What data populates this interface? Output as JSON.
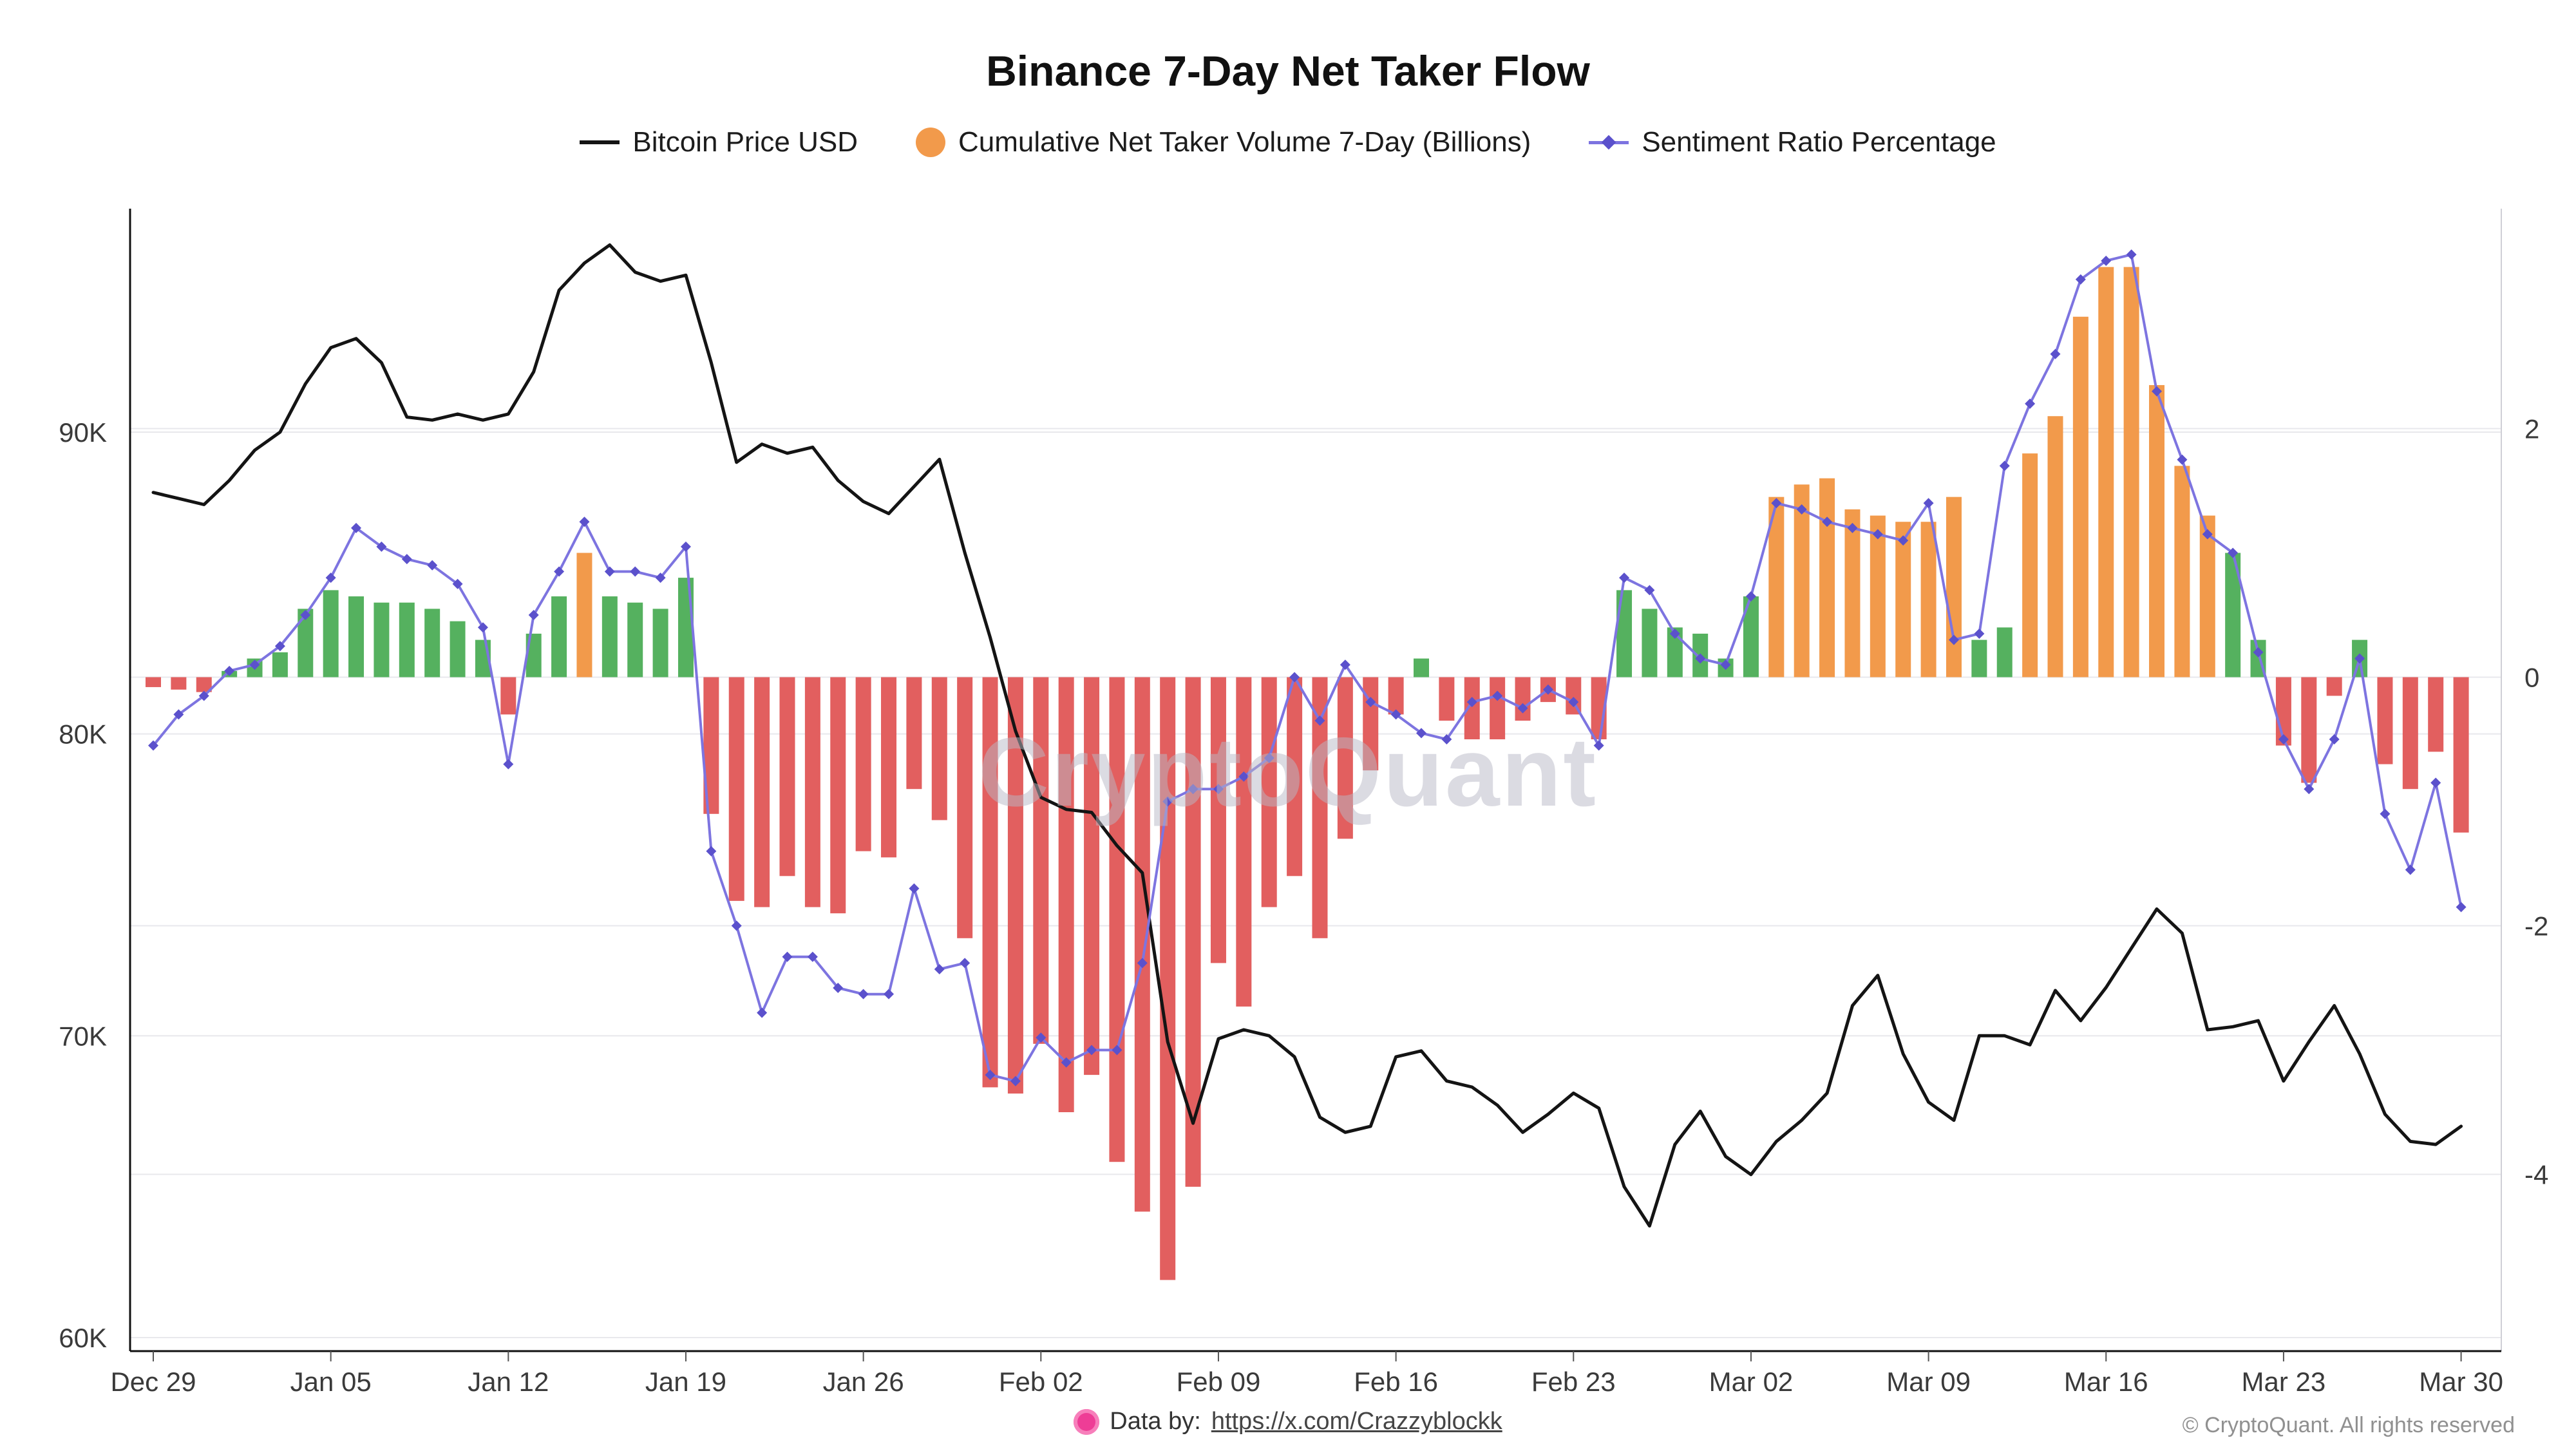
{
  "title": "Binance 7-Day Net Taker Flow",
  "watermark": "CryptoQuant",
  "legend": [
    {
      "label": "Bitcoin Price USD",
      "color": "#141414"
    },
    {
      "label": "Cumulative Net Taker Volume 7-Day (Billions)",
      "color": "#f29a4b"
    },
    {
      "label": "Sentiment Ratio Percentage",
      "color": "#7d74e0"
    }
  ],
  "footer": {
    "data_by_prefix": "Data by:",
    "data_by_link": "https://x.com/Crazzyblockk",
    "copyright": "© CryptoQuant. All rights reserved"
  },
  "chart_data": {
    "type": "mixed",
    "title": "Binance 7-Day Net Taker Flow",
    "x": [
      "Dec 29",
      "Dec 30",
      "Dec 31",
      "Jan 01",
      "Jan 02",
      "Jan 03",
      "Jan 04",
      "Jan 05",
      "Jan 06",
      "Jan 07",
      "Jan 08",
      "Jan 09",
      "Jan 10",
      "Jan 11",
      "Jan 12",
      "Jan 13",
      "Jan 14",
      "Jan 15",
      "Jan 16",
      "Jan 17",
      "Jan 18",
      "Jan 19",
      "Jan 20",
      "Jan 21",
      "Jan 22",
      "Jan 23",
      "Jan 24",
      "Jan 25",
      "Jan 26",
      "Jan 27",
      "Jan 28",
      "Jan 29",
      "Jan 30",
      "Jan 31",
      "Feb 01",
      "Feb 02",
      "Feb 03",
      "Feb 04",
      "Feb 05",
      "Feb 06",
      "Feb 07",
      "Feb 08",
      "Feb 09",
      "Feb 10",
      "Feb 11",
      "Feb 12",
      "Feb 13",
      "Feb 14",
      "Feb 15",
      "Feb 16",
      "Feb 17",
      "Feb 18",
      "Feb 19",
      "Feb 20",
      "Feb 21",
      "Feb 22",
      "Feb 23",
      "Feb 24",
      "Feb 25",
      "Feb 26",
      "Feb 27",
      "Feb 28",
      "Mar 01",
      "Mar 02",
      "Mar 03",
      "Mar 04",
      "Mar 05",
      "Mar 06",
      "Mar 07",
      "Mar 08",
      "Mar 09",
      "Mar 10",
      "Mar 11",
      "Mar 12",
      "Mar 13",
      "Mar 14",
      "Mar 15",
      "Mar 16",
      "Mar 17",
      "Mar 18",
      "Mar 19",
      "Mar 20",
      "Mar 21",
      "Mar 22",
      "Mar 23",
      "Mar 24",
      "Mar 25",
      "Mar 26",
      "Mar 27",
      "Mar 28",
      "Mar 29",
      "Mar 30"
    ],
    "series": [
      {
        "name": "Bitcoin Price USD",
        "type": "line",
        "axis": "left",
        "color": "#141414",
        "values": [
          88000,
          87800,
          87600,
          88400,
          89400,
          90000,
          91600,
          92800,
          93100,
          92300,
          90500,
          90400,
          90600,
          90400,
          90600,
          92000,
          94700,
          95600,
          96200,
          95300,
          95000,
          95200,
          92300,
          89000,
          89600,
          89300,
          89500,
          88400,
          87700,
          87300,
          88200,
          89100,
          86000,
          83200,
          80100,
          77900,
          77500,
          77400,
          76300,
          75400,
          69800,
          67100,
          69900,
          70200,
          70000,
          69300,
          67300,
          66800,
          67000,
          69300,
          69500,
          68500,
          68300,
          67700,
          66800,
          67400,
          68100,
          67600,
          65000,
          63700,
          66400,
          67500,
          66000,
          65400,
          66500,
          67200,
          68100,
          71000,
          72000,
          69400,
          67800,
          67200,
          70000,
          70000,
          69700,
          71500,
          70500,
          71600,
          72900,
          74200,
          73400,
          70200,
          70300,
          70500,
          68500,
          69800,
          71000,
          69400,
          67400,
          66500,
          66400,
          67000
        ]
      },
      {
        "name": "Cumulative Net Taker Volume 7-Day (Billions)",
        "type": "bar",
        "axis": "right",
        "values": [
          -0.08,
          -0.1,
          -0.12,
          0.05,
          0.15,
          0.2,
          0.55,
          0.7,
          0.65,
          0.6,
          0.6,
          0.55,
          0.45,
          0.3,
          -0.3,
          0.35,
          0.65,
          1.0,
          0.65,
          0.6,
          0.55,
          0.8,
          -1.1,
          -1.8,
          -1.85,
          -1.6,
          -1.85,
          -1.9,
          -1.4,
          -1.45,
          -0.9,
          -1.15,
          -2.1,
          -3.3,
          -3.35,
          -2.95,
          -3.5,
          -3.2,
          -3.9,
          -4.3,
          -4.85,
          -4.1,
          -2.3,
          -2.65,
          -1.85,
          -1.6,
          -2.1,
          -1.3,
          -0.75,
          -0.3,
          0.15,
          -0.35,
          -0.5,
          -0.5,
          -0.35,
          -0.2,
          -0.3,
          -0.5,
          0.7,
          0.55,
          0.4,
          0.35,
          0.15,
          0.65,
          1.45,
          1.55,
          1.6,
          1.35,
          1.3,
          1.25,
          1.25,
          1.45,
          0.3,
          0.4,
          1.8,
          2.1,
          2.9,
          3.3,
          3.3,
          2.35,
          1.7,
          1.3,
          1.0,
          0.3,
          -0.55,
          -0.85,
          -0.15,
          0.3,
          -0.7,
          -0.9,
          -0.6,
          -1.25
        ],
        "bar_colors": [
          "red",
          "red",
          "red",
          "green",
          "green",
          "green",
          "green",
          "green",
          "green",
          "green",
          "green",
          "green",
          "green",
          "green",
          "red",
          "green",
          "green",
          "orange",
          "green",
          "green",
          "green",
          "green",
          "red",
          "red",
          "red",
          "red",
          "red",
          "red",
          "red",
          "red",
          "red",
          "red",
          "red",
          "red",
          "red",
          "red",
          "red",
          "red",
          "red",
          "red",
          "red",
          "red",
          "red",
          "red",
          "red",
          "red",
          "red",
          "red",
          "red",
          "red",
          "green",
          "red",
          "red",
          "red",
          "red",
          "red",
          "red",
          "red",
          "green",
          "green",
          "green",
          "green",
          "green",
          "green",
          "orange",
          "orange",
          "orange",
          "orange",
          "orange",
          "orange",
          "orange",
          "orange",
          "green",
          "green",
          "orange",
          "orange",
          "orange",
          "orange",
          "orange",
          "orange",
          "orange",
          "orange",
          "green",
          "green",
          "red",
          "red",
          "red",
          "green",
          "red",
          "red",
          "red",
          "red"
        ],
        "palette": {
          "red": "#e25f5f",
          "green": "#55b15f",
          "orange": "#f29a4b"
        }
      },
      {
        "name": "Sentiment Ratio Percentage",
        "type": "line",
        "axis": "right",
        "color": "#7d74e0",
        "marker_color": "#5b51cc",
        "values": [
          -0.55,
          -0.3,
          -0.15,
          0.05,
          0.1,
          0.25,
          0.5,
          0.8,
          1.2,
          1.05,
          0.95,
          0.9,
          0.75,
          0.4,
          -0.7,
          0.5,
          0.85,
          1.25,
          0.85,
          0.85,
          0.8,
          1.05,
          -1.4,
          -2.0,
          -2.7,
          -2.25,
          -2.25,
          -2.5,
          -2.55,
          -2.55,
          -1.7,
          -2.35,
          -2.3,
          -3.2,
          -3.25,
          -2.9,
          -3.1,
          -3.0,
          -3.0,
          -2.3,
          -1.0,
          -0.9,
          -0.9,
          -0.8,
          -0.65,
          0.0,
          -0.35,
          0.1,
          -0.2,
          -0.3,
          -0.45,
          -0.5,
          -0.2,
          -0.15,
          -0.25,
          -0.1,
          -0.2,
          -0.55,
          0.8,
          0.7,
          0.35,
          0.15,
          0.1,
          0.65,
          1.4,
          1.35,
          1.25,
          1.2,
          1.15,
          1.1,
          1.4,
          0.3,
          0.35,
          1.7,
          2.2,
          2.6,
          3.2,
          3.35,
          3.4,
          2.3,
          1.75,
          1.15,
          1.0,
          0.2,
          -0.5,
          -0.9,
          -0.5,
          0.15,
          -1.1,
          -1.55,
          -0.85,
          -1.85
        ]
      }
    ],
    "left_axis": {
      "tick_values": [
        90000,
        80000,
        70000,
        60000
      ],
      "tick_labels": [
        "90K",
        "80K",
        "70K",
        "60K"
      ],
      "min": 60000,
      "max": 97000
    },
    "right_axis": {
      "tick_values": [
        2,
        0,
        -2,
        -4
      ],
      "tick_labels": [
        "2",
        "0",
        "-2",
        "-4"
      ],
      "min": -5,
      "max": 3.6
    },
    "x_axis": {
      "tick_days": [
        0,
        7,
        14,
        21,
        28,
        35,
        42,
        49,
        56,
        63,
        70,
        77,
        84,
        91
      ],
      "tick_labels": [
        "Dec 29",
        "Jan 05",
        "Jan 12",
        "Jan 19",
        "Jan 26",
        "Feb 02",
        "Feb 09",
        "Feb 16",
        "Feb 23",
        "Mar 02",
        "Mar 09",
        "Mar 16",
        "Mar 23",
        "Mar 30"
      ]
    },
    "grid": true,
    "legend_position": "top"
  }
}
